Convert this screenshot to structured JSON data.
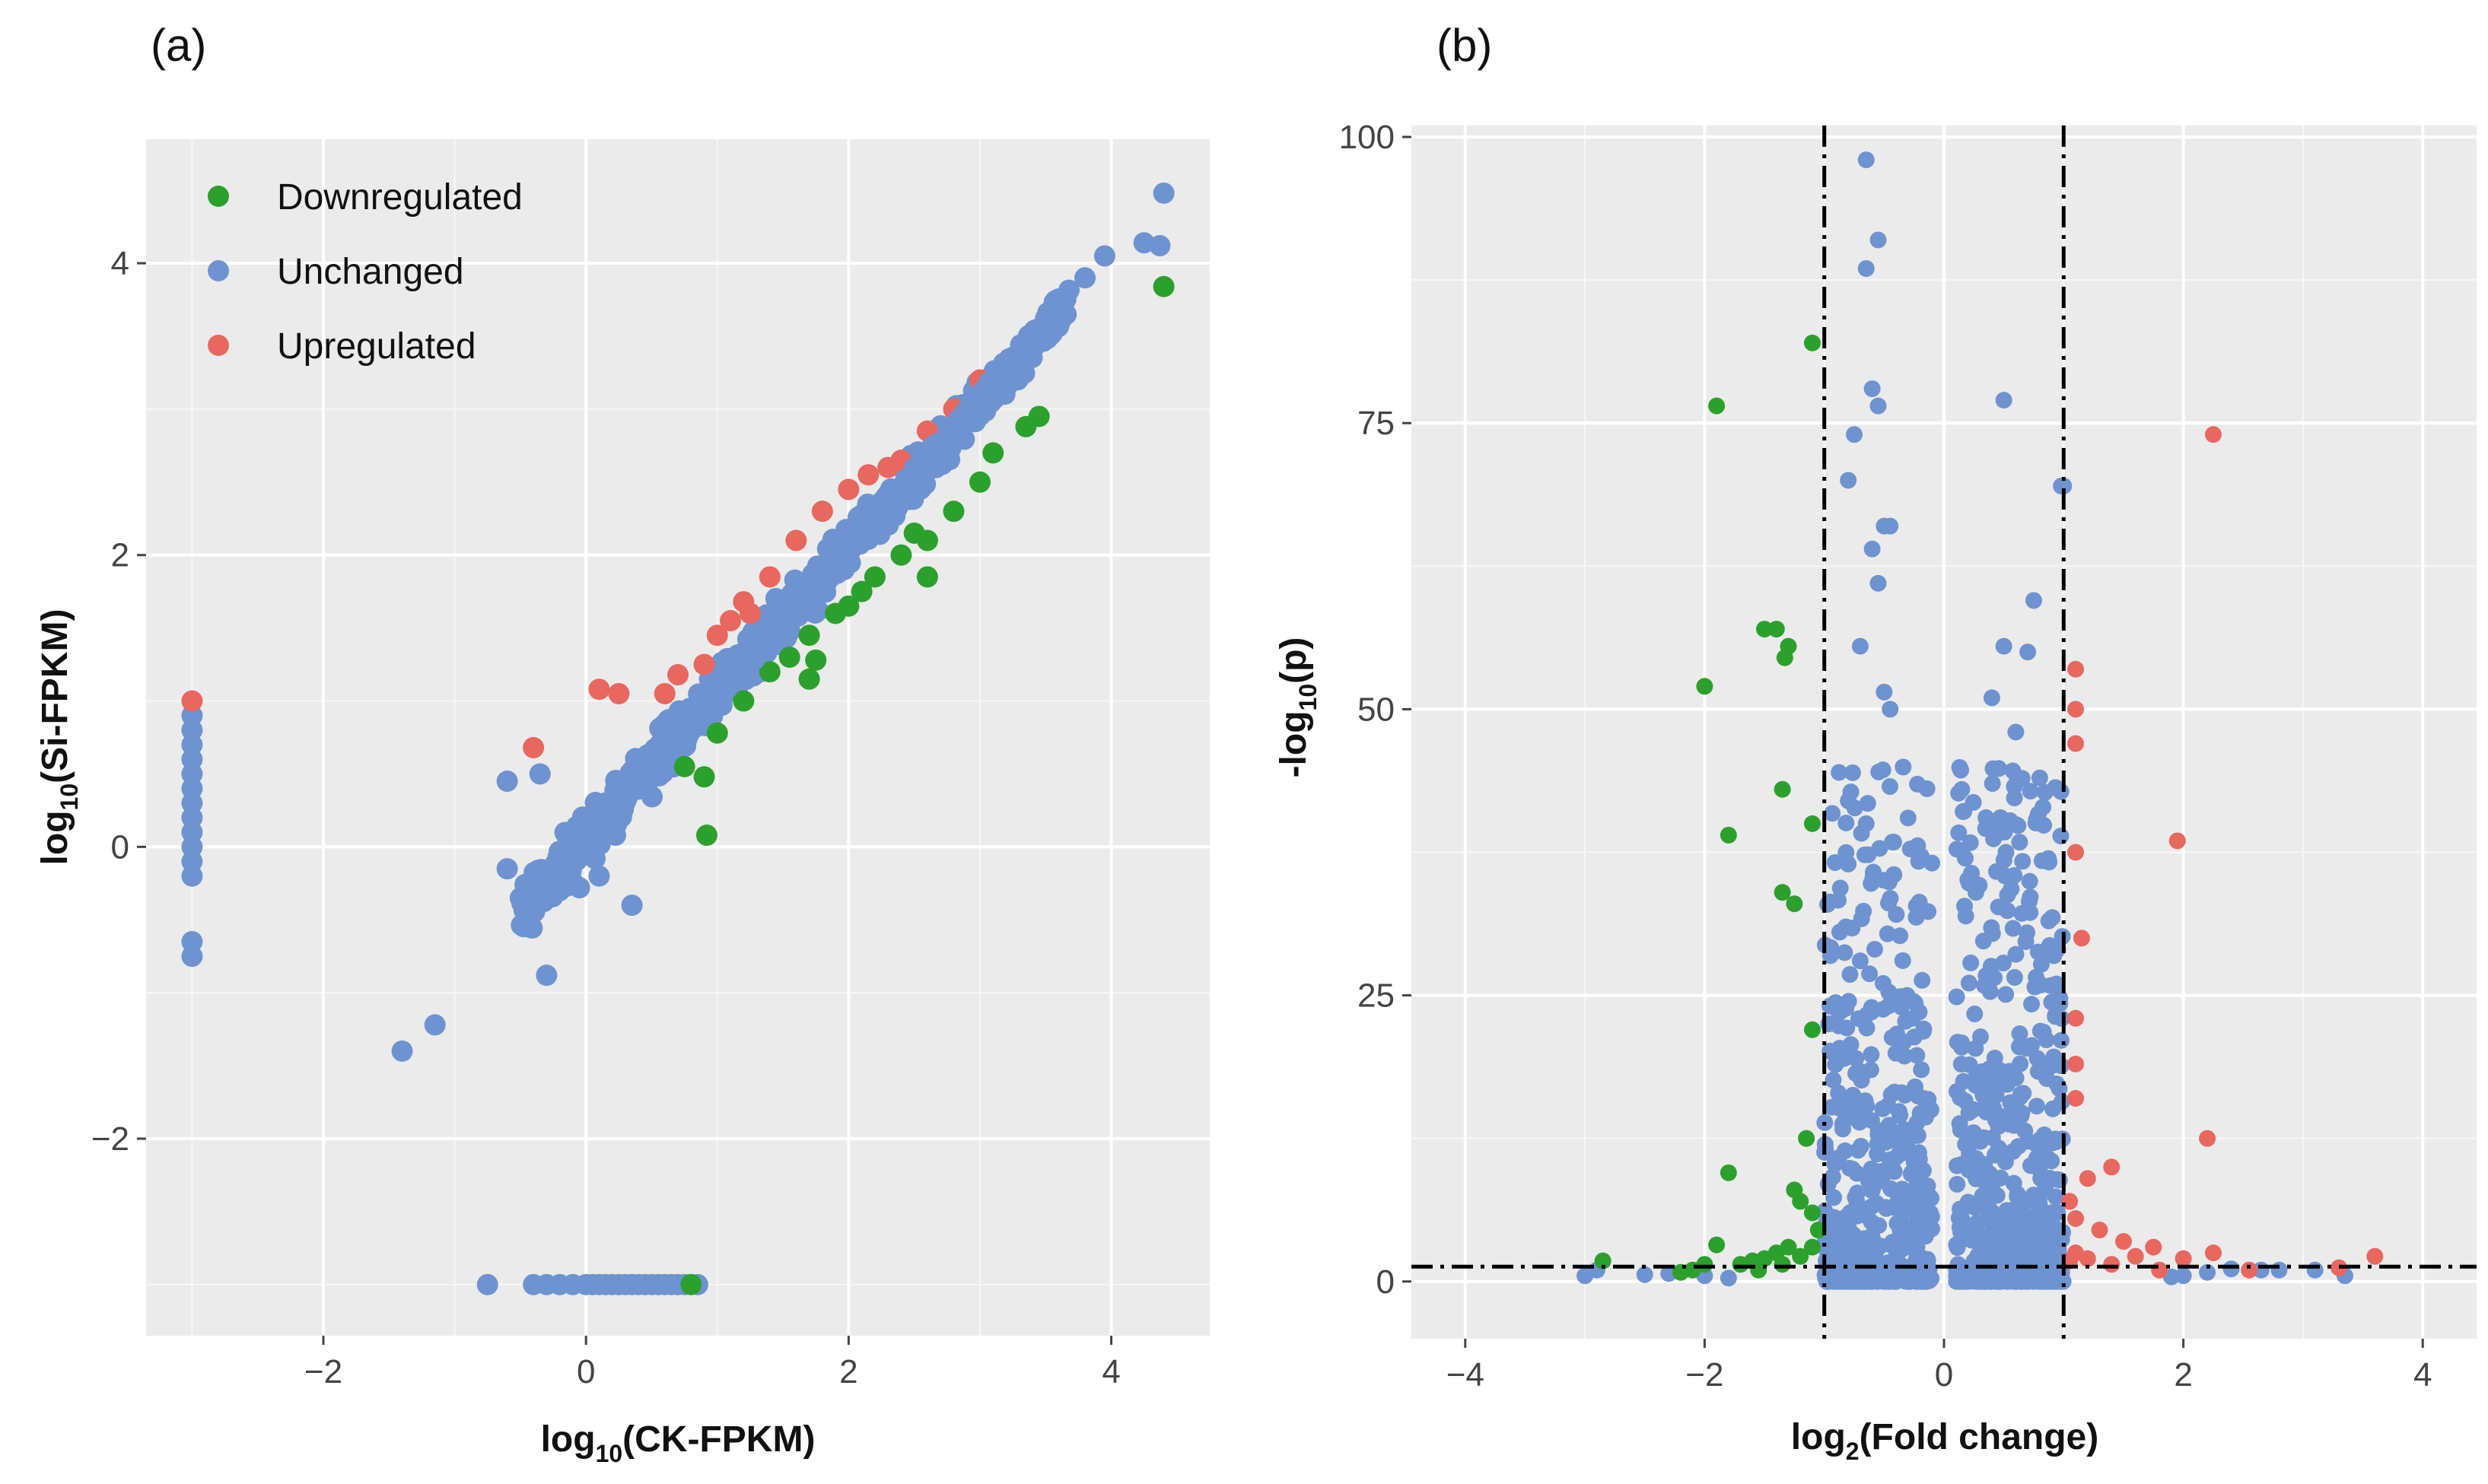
{
  "chart_data": [
    {
      "panel": "(a)",
      "type": "scatter",
      "title": "",
      "xlabel": {
        "main": "log",
        "sub": "10",
        "rest": "(CK-FPKM)"
      },
      "ylabel": {
        "main": "log",
        "sub": "10",
        "rest": "(Si-FPKM)"
      },
      "xlim": [
        -3.35,
        4.75
      ],
      "ylim": [
        -3.35,
        4.85
      ],
      "xticks": [
        -2,
        0,
        2,
        4
      ],
      "xtick_labels": [
        "−2",
        "0",
        "2",
        "4"
      ],
      "yticks": [
        -2,
        0,
        2,
        4
      ],
      "ytick_labels": [
        "−2",
        "0",
        "2",
        "4"
      ],
      "grid": true,
      "legend": {
        "position": "top-left",
        "entries": [
          {
            "label": "Downregulated",
            "color": "#2ca02c"
          },
          {
            "label": "Unchanged",
            "color": "#6e93d0"
          },
          {
            "label": "Upregulated",
            "color": "#e8675f"
          }
        ]
      },
      "series": [
        {
          "name": "Unchanged",
          "color": "#6e93d0",
          "band": {
            "x_from": -0.5,
            "x_to": 3.7,
            "slope": 1.0,
            "intercept": 0.05,
            "spread": 0.18,
            "count": 700
          },
          "points": [
            [
              4.4,
              4.48
            ],
            [
              4.25,
              4.14
            ],
            [
              4.37,
              4.12
            ],
            [
              3.95,
              4.05
            ],
            [
              3.8,
              3.9
            ],
            [
              -3,
              0.9
            ],
            [
              -3,
              0.8
            ],
            [
              -3,
              0.7
            ],
            [
              -3,
              0.6
            ],
            [
              -3,
              0.5
            ],
            [
              -3,
              0.4
            ],
            [
              -3,
              0.3
            ],
            [
              -3,
              0.2
            ],
            [
              -3,
              0.1
            ],
            [
              -3,
              0.0
            ],
            [
              -3,
              -0.1
            ],
            [
              -3,
              -0.2
            ],
            [
              -3,
              -0.65
            ],
            [
              -3,
              -0.75
            ],
            [
              -1.4,
              -1.4
            ],
            [
              -1.15,
              -1.22
            ],
            [
              -0.3,
              -0.88
            ],
            [
              -0.6,
              -0.15
            ],
            [
              -0.5,
              -0.35
            ],
            [
              -0.35,
              -0.25
            ],
            [
              -0.2,
              -0.3
            ],
            [
              -0.05,
              -0.28
            ],
            [
              0.1,
              -0.2
            ],
            [
              0.35,
              -0.4
            ],
            [
              -0.6,
              0.45
            ],
            [
              -0.35,
              0.5
            ],
            [
              -0.75,
              -3.0
            ],
            [
              -0.4,
              -3.0
            ],
            [
              -0.3,
              -3.0
            ],
            [
              -0.2,
              -3.0
            ],
            [
              -0.1,
              -3.0
            ],
            [
              0.0,
              -3.0
            ],
            [
              0.05,
              -3.0
            ],
            [
              0.1,
              -3.0
            ],
            [
              0.15,
              -3.0
            ],
            [
              0.2,
              -3.0
            ],
            [
              0.25,
              -3.0
            ],
            [
              0.3,
              -3.0
            ],
            [
              0.35,
              -3.0
            ],
            [
              0.4,
              -3.0
            ],
            [
              0.45,
              -3.0
            ],
            [
              0.5,
              -3.0
            ],
            [
              0.55,
              -3.0
            ],
            [
              0.6,
              -3.0
            ],
            [
              0.65,
              -3.0
            ],
            [
              0.7,
              -3.0
            ],
            [
              0.75,
              -3.0
            ],
            [
              0.85,
              -3.0
            ]
          ]
        },
        {
          "name": "Downregulated",
          "color": "#2ca02c",
          "points": [
            [
              4.4,
              3.84
            ],
            [
              3.45,
              2.95
            ],
            [
              3.35,
              2.88
            ],
            [
              3.0,
              2.5
            ],
            [
              2.8,
              2.3
            ],
            [
              2.6,
              2.1
            ],
            [
              2.6,
              1.85
            ],
            [
              2.4,
              2.0
            ],
            [
              2.2,
              1.85
            ],
            [
              2.1,
              1.75
            ],
            [
              1.9,
              1.6
            ],
            [
              1.7,
              1.45
            ],
            [
              1.55,
              1.3
            ],
            [
              1.4,
              1.2
            ],
            [
              1.2,
              1.0
            ],
            [
              1.0,
              0.78
            ],
            [
              0.9,
              0.48
            ],
            [
              0.92,
              0.08
            ],
            [
              0.75,
              0.55
            ],
            [
              1.7,
              1.15
            ],
            [
              1.75,
              1.28
            ],
            [
              2.0,
              1.65
            ],
            [
              2.5,
              2.15
            ],
            [
              3.1,
              2.7
            ],
            [
              0.8,
              -3.0
            ]
          ]
        },
        {
          "name": "Upregulated",
          "color": "#e8675f",
          "points": [
            [
              -3,
              1.0
            ],
            [
              -0.4,
              0.68
            ],
            [
              0.1,
              1.08
            ],
            [
              0.25,
              1.05
            ],
            [
              0.6,
              1.05
            ],
            [
              0.7,
              1.18
            ],
            [
              0.9,
              1.25
            ],
            [
              1.0,
              1.45
            ],
            [
              1.1,
              1.55
            ],
            [
              1.2,
              1.68
            ],
            [
              1.25,
              1.6
            ],
            [
              1.4,
              1.85
            ],
            [
              1.6,
              2.1
            ],
            [
              1.8,
              2.3
            ],
            [
              2.0,
              2.45
            ],
            [
              2.15,
              2.55
            ],
            [
              2.3,
              2.6
            ],
            [
              2.4,
              2.65
            ],
            [
              2.6,
              2.85
            ],
            [
              2.8,
              3.0
            ],
            [
              3.0,
              3.2
            ]
          ]
        }
      ]
    },
    {
      "panel": "(b)",
      "type": "scatter",
      "title": "",
      "xlabel": {
        "main": "log",
        "sub": "2",
        "rest": "(Fold change)"
      },
      "ylabel": {
        "main": "-log",
        "sub": "10",
        "rest": "(p)"
      },
      "xlim": [
        -4.45,
        4.45
      ],
      "ylim": [
        -5,
        101
      ],
      "xticks": [
        -4,
        -2,
        0,
        2,
        4
      ],
      "xtick_labels": [
        "−4",
        "−2",
        "0",
        "2",
        "4"
      ],
      "yticks": [
        0,
        25,
        50,
        75,
        100
      ],
      "ytick_labels": [
        "0",
        "25",
        "50",
        "75",
        "100"
      ],
      "grid": true,
      "reference_lines": [
        {
          "orientation": "vertical",
          "value": -1,
          "style": "dashdot"
        },
        {
          "orientation": "vertical",
          "value": 1,
          "style": "dashdot"
        },
        {
          "orientation": "horizontal",
          "value": 1.3,
          "style": "dashdot"
        }
      ],
      "series": [
        {
          "name": "Unchanged",
          "color": "#6e93d0",
          "clusters": [
            {
              "x_from": -1.0,
              "x_to": -0.1,
              "count": 480
            },
            {
              "x_from": 0.1,
              "x_to": 1.0,
              "count": 560
            }
          ],
          "points": [
            [
              -0.65,
              98
            ],
            [
              -0.55,
              91
            ],
            [
              -0.65,
              88.5
            ],
            [
              -0.6,
              78
            ],
            [
              -0.55,
              76.5
            ],
            [
              -0.75,
              74
            ],
            [
              -0.8,
              70
            ],
            [
              -0.5,
              66
            ],
            [
              -0.45,
              66
            ],
            [
              -0.6,
              64
            ],
            [
              -0.55,
              61
            ],
            [
              -0.7,
              55.5
            ],
            [
              -0.5,
              51.5
            ],
            [
              -0.45,
              50
            ],
            [
              -0.3,
              40.5
            ],
            [
              -0.8,
              42
            ],
            [
              -0.65,
              40
            ],
            [
              0.5,
              77
            ],
            [
              0.98,
              69.5
            ],
            [
              1.0,
              69.5
            ],
            [
              0.75,
              59.5
            ],
            [
              0.5,
              55.5
            ],
            [
              0.7,
              55
            ],
            [
              0.4,
              51
            ],
            [
              0.6,
              48
            ],
            [
              0.8,
              44
            ],
            [
              -2.9,
              1
            ],
            [
              -2.3,
              0.7
            ],
            [
              2.65,
              1
            ],
            [
              3.1,
              1
            ],
            [
              3.35,
              0.5
            ],
            [
              1.9,
              0.4
            ],
            [
              2.2,
              0.8
            ],
            [
              2.4,
              1.1
            ],
            [
              2.0,
              0.5
            ],
            [
              2.8,
              1.0
            ],
            [
              -3.0,
              0.5
            ],
            [
              -2.5,
              0.6
            ],
            [
              -2.0,
              0.5
            ],
            [
              -1.8,
              0.3
            ]
          ]
        },
        {
          "name": "Downregulated",
          "color": "#2ca02c",
          "points": [
            [
              -1.1,
              82
            ],
            [
              -1.9,
              76.5
            ],
            [
              -1.3,
              55.5
            ],
            [
              -1.4,
              57
            ],
            [
              -1.5,
              57
            ],
            [
              -1.33,
              54.5
            ],
            [
              -2.0,
              52
            ],
            [
              -1.35,
              43
            ],
            [
              -1.8,
              39
            ],
            [
              -1.1,
              40
            ],
            [
              -1.25,
              33
            ],
            [
              -1.35,
              34
            ],
            [
              -1.1,
              22
            ],
            [
              -1.8,
              9.5
            ],
            [
              -1.15,
              12.5
            ],
            [
              -1.25,
              8
            ],
            [
              -1.2,
              7
            ],
            [
              -1.1,
              6
            ],
            [
              -1.05,
              4.5
            ],
            [
              -1.3,
              3
            ],
            [
              -1.4,
              2.5
            ],
            [
              -1.5,
              2
            ],
            [
              -1.6,
              1.8
            ],
            [
              -1.7,
              1.5
            ],
            [
              -1.9,
              3.2
            ],
            [
              -2.0,
              1.5
            ],
            [
              -2.1,
              1.0
            ],
            [
              -2.2,
              0.8
            ],
            [
              -2.85,
              1.8
            ],
            [
              -1.55,
              1.0
            ],
            [
              -1.35,
              1.5
            ],
            [
              -1.2,
              2.2
            ],
            [
              -1.1,
              3.0
            ]
          ]
        },
        {
          "name": "Upregulated",
          "color": "#e8675f",
          "points": [
            [
              2.25,
              74
            ],
            [
              1.1,
              53.5
            ],
            [
              1.1,
              50
            ],
            [
              1.1,
              47
            ],
            [
              1.95,
              38.5
            ],
            [
              1.1,
              37.5
            ],
            [
              1.15,
              30
            ],
            [
              1.1,
              23
            ],
            [
              1.1,
              19
            ],
            [
              1.1,
              16
            ],
            [
              2.2,
              12.5
            ],
            [
              1.2,
              9
            ],
            [
              1.4,
              10
            ],
            [
              1.05,
              7
            ],
            [
              1.1,
              5.5
            ],
            [
              1.3,
              4.5
            ],
            [
              1.5,
              3.5
            ],
            [
              1.1,
              2.5
            ],
            [
              1.2,
              2.0
            ],
            [
              1.6,
              2.2
            ],
            [
              1.75,
              3.0
            ],
            [
              2.25,
              2.5
            ],
            [
              2.0,
              2.0
            ],
            [
              3.6,
              2.2
            ],
            [
              3.3,
              1.2
            ],
            [
              2.55,
              1.0
            ],
            [
              1.4,
              1.5
            ],
            [
              1.8,
              1.0
            ],
            [
              1.05,
              1.8
            ]
          ]
        }
      ]
    }
  ]
}
